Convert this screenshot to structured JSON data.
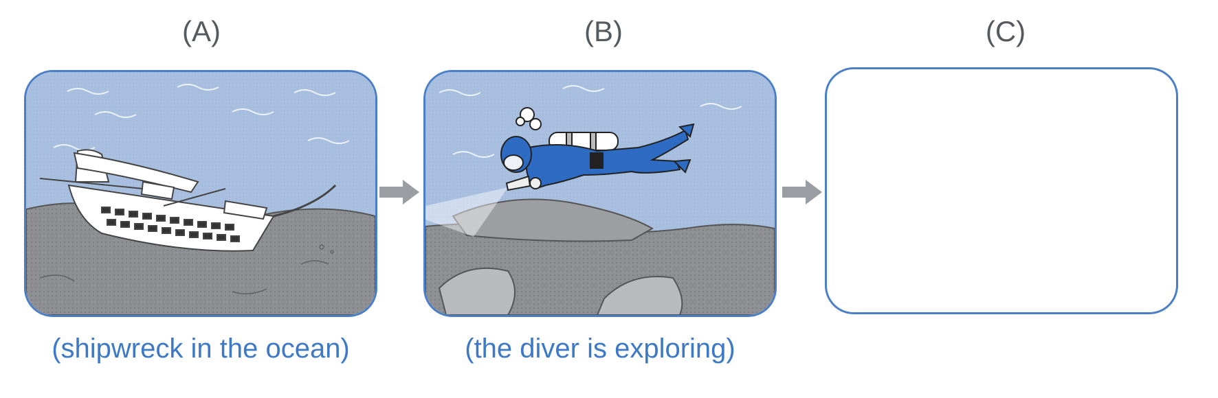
{
  "panels": [
    {
      "label": "(A)",
      "caption": "(shipwreck in the ocean)"
    },
    {
      "label": "(B)",
      "caption": "(the diver is exploring)"
    },
    {
      "label": "(C)",
      "caption": ""
    }
  ],
  "colors": {
    "frame": "#4a7fc8",
    "caption_text": "#3d79c4",
    "water": "#a9bfdf",
    "seabed": "#8b8d90",
    "wetsuit": "#2e6cc4",
    "arrow": "#9a9ea3"
  }
}
